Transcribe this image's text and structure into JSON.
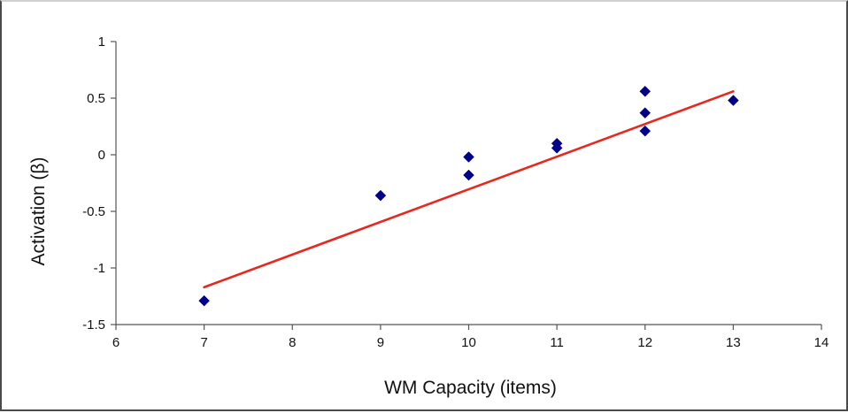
{
  "chart_data": {
    "type": "scatter",
    "title": "",
    "xlabel": "WM Capacity (items)",
    "ylabel": "Activation (β)",
    "xlim": [
      6,
      14
    ],
    "ylim": [
      -1.5,
      1
    ],
    "xticks": [
      6,
      7,
      8,
      9,
      10,
      11,
      12,
      13,
      14
    ],
    "yticks": [
      -1.5,
      -1,
      -0.5,
      0,
      0.5,
      1
    ],
    "xtick_labels": [
      "6",
      "7",
      "8",
      "9",
      "10",
      "11",
      "12",
      "13",
      "14"
    ],
    "ytick_labels": [
      "-1.5",
      "-1",
      "-0.5",
      "0",
      "0.5",
      "1"
    ],
    "grid": false,
    "series": [
      {
        "type": "scatter",
        "marker": "diamond",
        "color": "#00008b",
        "points": [
          {
            "x": 7,
            "y": -1.29
          },
          {
            "x": 9,
            "y": -0.36
          },
          {
            "x": 10,
            "y": -0.02
          },
          {
            "x": 10,
            "y": -0.18
          },
          {
            "x": 11,
            "y": 0.1
          },
          {
            "x": 11,
            "y": 0.06
          },
          {
            "x": 12,
            "y": 0.56
          },
          {
            "x": 12,
            "y": 0.37
          },
          {
            "x": 12,
            "y": 0.21
          },
          {
            "x": 13,
            "y": 0.48
          }
        ]
      },
      {
        "type": "line",
        "role": "linear fit",
        "color": "#e8281e",
        "points": [
          {
            "x": 7,
            "y": -1.17
          },
          {
            "x": 13,
            "y": 0.56
          }
        ]
      }
    ]
  }
}
